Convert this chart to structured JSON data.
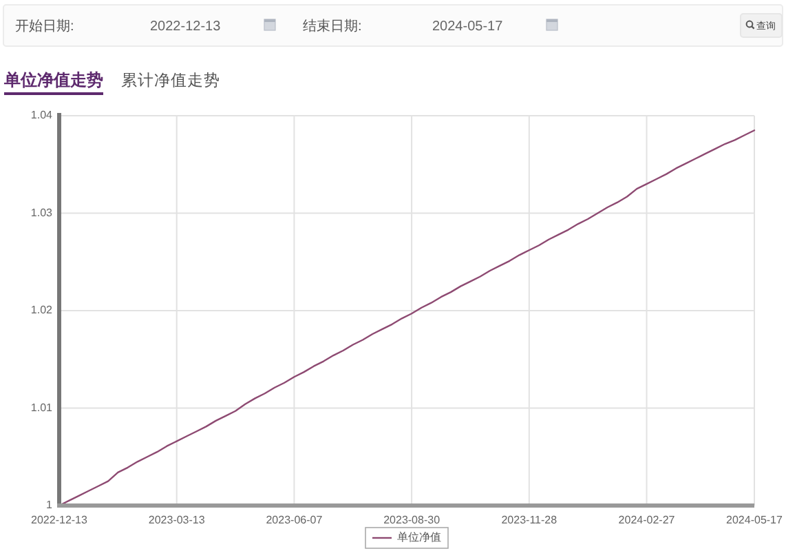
{
  "chart_data": {
    "type": "line",
    "title": "单位净值走势",
    "annotations": [
      "开始日期:",
      "2022-12-13",
      "结束日期:",
      "2024-05-17",
      "查询",
      "累计净值走势"
    ],
    "categories": [
      "2022-12-13",
      null,
      null,
      null,
      null,
      null,
      null,
      null,
      null,
      null,
      null,
      null,
      "2023-03-13",
      null,
      null,
      null,
      null,
      null,
      null,
      null,
      null,
      null,
      null,
      null,
      "2023-06-07",
      null,
      null,
      null,
      null,
      null,
      null,
      null,
      null,
      null,
      null,
      null,
      "2023-08-30",
      null,
      null,
      null,
      null,
      null,
      null,
      null,
      null,
      null,
      null,
      null,
      "2023-11-28",
      null,
      null,
      null,
      null,
      null,
      null,
      null,
      null,
      null,
      null,
      null,
      "2024-02-27",
      null,
      null,
      null,
      null,
      null,
      null,
      null,
      null,
      null,
      null,
      "2024-05-17"
    ],
    "series": [
      {
        "name": "单位净值",
        "color": "#8e4a72",
        "values": [
          1.0,
          1.0005,
          1.001,
          1.0015,
          1.002,
          1.0025,
          1.0034,
          1.0039,
          1.0045,
          1.005,
          1.0055,
          1.0061,
          1.0066,
          1.0071,
          1.0076,
          1.0081,
          1.0087,
          1.0092,
          1.0097,
          1.0104,
          1.011,
          1.0115,
          1.0121,
          1.0126,
          1.0132,
          1.0137,
          1.0143,
          1.0148,
          1.0154,
          1.0159,
          1.0165,
          1.017,
          1.0176,
          1.0181,
          1.0186,
          1.0192,
          1.0197,
          1.0203,
          1.0208,
          1.0214,
          1.0219,
          1.0225,
          1.023,
          1.0235,
          1.0241,
          1.0246,
          1.0251,
          1.0257,
          1.0262,
          1.0267,
          1.0273,
          1.0278,
          1.0283,
          1.0289,
          1.0294,
          1.03,
          1.0306,
          1.0311,
          1.0317,
          1.0325,
          1.033,
          1.0335,
          1.034,
          1.0346,
          1.0351,
          1.0356,
          1.0361,
          1.0366,
          1.0371,
          1.0375,
          1.038,
          1.0385
        ]
      }
    ],
    "ylim": [
      1,
      1.04
    ],
    "yticks": [
      1,
      1.01,
      1.02,
      1.03,
      1.04
    ],
    "grid": true,
    "legend": "bottom"
  }
}
